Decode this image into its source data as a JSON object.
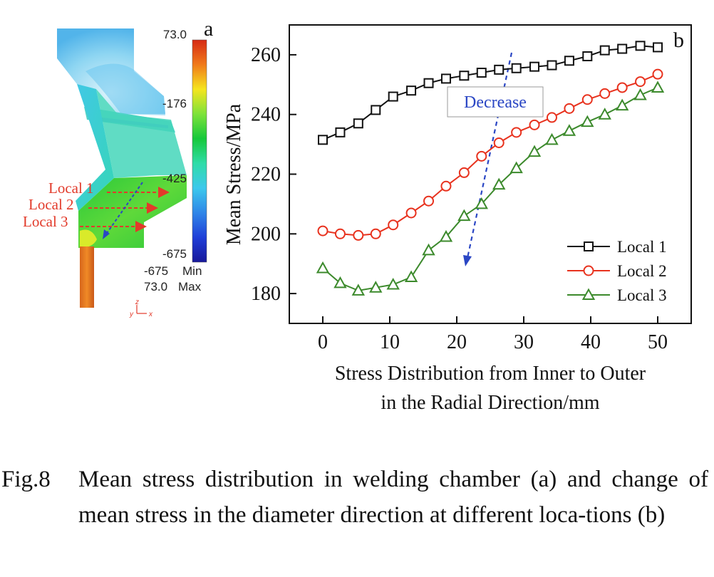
{
  "panel_a": {
    "label": "a",
    "colorbar": {
      "ticks": [
        "73.0",
        "-176",
        "-425",
        "-675"
      ],
      "min_label": "-675",
      "min_word": "Min",
      "max_label": "73.0",
      "max_word": "Max",
      "colors": [
        "#d62a14",
        "#f07a1a",
        "#f5e51e",
        "#7ee23a",
        "#16c83a",
        "#2fdca8",
        "#3cc8ec",
        "#2f86e8",
        "#1f3fd8",
        "#18189a"
      ]
    },
    "locals": [
      "Local 1",
      "Local 2",
      "Local 3"
    ],
    "axis_z": "z",
    "axis_y": "y",
    "axis_x": "x",
    "arrow_color": "#2a46c4",
    "local_color": "#e23a2a"
  },
  "chart_data": {
    "type": "line",
    "panel_label": "b",
    "xlabel_line1": "Stress Distribution from Inner to Outer",
    "xlabel_line2": "in the Radial Direction/mm",
    "ylabel": "Mean Stress/MPa",
    "xlim": [
      -5,
      55
    ],
    "ylim": [
      170,
      270
    ],
    "xticks": [
      0,
      10,
      20,
      30,
      40,
      50
    ],
    "yticks": [
      180,
      200,
      220,
      240,
      260
    ],
    "annotation": "Decrease",
    "annotation_color": "#2a46c4",
    "legend_position": "bottom-right",
    "x": [
      0,
      2.6,
      5.3,
      7.9,
      10.5,
      13.2,
      15.8,
      18.4,
      21.1,
      23.7,
      26.3,
      28.9,
      31.6,
      34.2,
      36.8,
      39.5,
      42.1,
      44.7,
      47.4,
      50
    ],
    "series": [
      {
        "name": "Local 1",
        "color": "#111111",
        "marker": "square",
        "values": [
          231.5,
          234.0,
          237.0,
          241.5,
          246.0,
          248.0,
          250.5,
          252.0,
          253.0,
          254.0,
          255.0,
          255.5,
          256.0,
          256.5,
          258.0,
          259.5,
          261.5,
          262.0,
          263.0,
          262.5
        ]
      },
      {
        "name": "Local 2",
        "color": "#e8321e",
        "marker": "circle",
        "values": [
          201.0,
          200.0,
          199.5,
          200.0,
          203.0,
          207.0,
          211.0,
          216.0,
          220.5,
          226.0,
          230.5,
          234.0,
          236.5,
          239.0,
          242.0,
          245.0,
          247.0,
          249.0,
          251.0,
          253.5
        ]
      },
      {
        "name": "Local 3",
        "color": "#3c8a2c",
        "marker": "triangle",
        "values": [
          188.5,
          183.5,
          181.0,
          182.0,
          183.0,
          185.5,
          194.5,
          199.0,
          206.0,
          210.0,
          216.5,
          222.0,
          227.5,
          231.5,
          234.5,
          237.5,
          240.0,
          243.0,
          246.5,
          249.0
        ]
      }
    ]
  },
  "caption": {
    "number": "Fig.8",
    "text": "Mean stress distribution in welding chamber (a) and change of mean stress in the diameter direction at different loca-tions (b)"
  }
}
